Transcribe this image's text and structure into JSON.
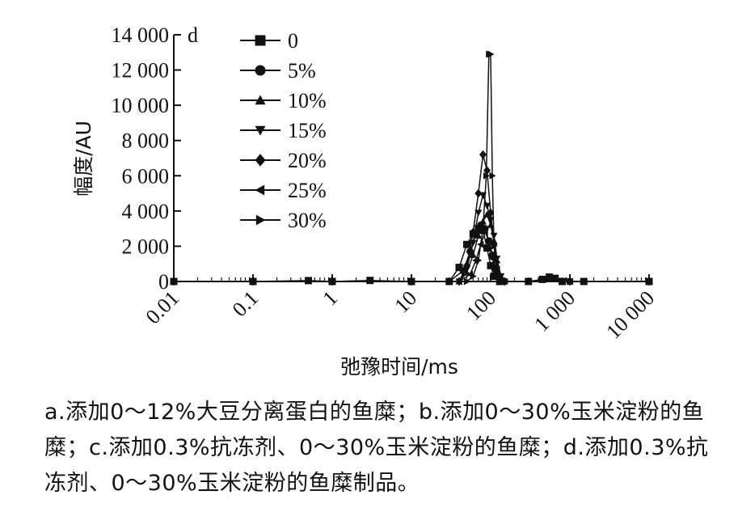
{
  "caption": "a.添加0～12%大豆分离蛋白的鱼糜；b.添加0～30%玉米淀粉的鱼糜；c.添加0.3%抗冻剂、0～30%玉米淀粉的鱼糜；d.添加0.3%抗冻剂、0～30%玉米淀粉的鱼糜制品。",
  "chart_data": {
    "type": "line",
    "panel_label": "d",
    "xlabel": "弛豫时间/ms",
    "ylabel": "幅度/AU",
    "x_scale": "log",
    "xlim": [
      0.01,
      10000
    ],
    "ylim": [
      0,
      14000
    ],
    "x_ticks": [
      0.01,
      0.1,
      1,
      10,
      100,
      1000,
      10000
    ],
    "x_tick_labels": [
      "0.01",
      "0.1",
      "1",
      "10",
      "100",
      "1 000",
      "10 000"
    ],
    "y_ticks": [
      0,
      2000,
      4000,
      6000,
      8000,
      10000,
      12000,
      14000
    ],
    "y_tick_labels": [
      "0",
      "2 000",
      "4 000",
      "6 000",
      "8 000",
      "10 000",
      "12 000",
      "14 000"
    ],
    "legend_position": "top-left",
    "series": [
      {
        "name": "0",
        "marker": "square",
        "x": [
          0.01,
          0.1,
          0.5,
          1,
          3,
          10,
          30,
          40,
          50,
          60,
          70,
          80,
          90,
          100,
          110,
          130,
          300,
          450,
          550,
          650,
          800,
          1500,
          10000
        ],
        "y": [
          0,
          0,
          50,
          0,
          60,
          0,
          0,
          800,
          2100,
          2700,
          3000,
          2900,
          1900,
          900,
          300,
          0,
          0,
          120,
          250,
          180,
          0,
          0,
          0
        ]
      },
      {
        "name": "5%",
        "marker": "circle",
        "x": [
          0.01,
          0.1,
          1,
          10,
          30,
          45,
          55,
          65,
          75,
          85,
          95,
          105,
          115,
          130,
          150,
          1000,
          10000
        ],
        "y": [
          0,
          0,
          0,
          0,
          0,
          600,
          1700,
          2700,
          3200,
          3000,
          2300,
          1500,
          700,
          150,
          0,
          0,
          0
        ]
      },
      {
        "name": "10%",
        "marker": "triangle-up",
        "x": [
          0.01,
          0.1,
          1,
          10,
          40,
          50,
          60,
          70,
          80,
          90,
          100,
          110,
          120,
          130,
          150,
          1000,
          10000
        ],
        "y": [
          0,
          0,
          0,
          0,
          0,
          500,
          1500,
          2600,
          3400,
          3800,
          3200,
          2300,
          1200,
          400,
          0,
          0,
          0
        ]
      },
      {
        "name": "15%",
        "marker": "triangle-down",
        "x": [
          0.01,
          0.1,
          1,
          10,
          40,
          50,
          60,
          70,
          80,
          90,
          100,
          110,
          120,
          135,
          150,
          1000,
          10000
        ],
        "y": [
          0,
          0,
          0,
          0,
          0,
          700,
          2200,
          3900,
          4900,
          4300,
          3500,
          2600,
          1300,
          300,
          0,
          0,
          0
        ]
      },
      {
        "name": "20%",
        "marker": "diamond",
        "x": [
          0.01,
          0.1,
          1,
          10,
          40,
          50,
          60,
          70,
          80,
          90,
          100,
          110,
          120,
          135,
          150,
          1000,
          10000
        ],
        "y": [
          0,
          0,
          0,
          0,
          0,
          900,
          2800,
          5000,
          7200,
          6300,
          3900,
          2100,
          800,
          150,
          0,
          0,
          0
        ]
      },
      {
        "name": "25%",
        "marker": "triangle-left",
        "x": [
          0.01,
          0.1,
          1,
          10,
          40,
          55,
          65,
          75,
          85,
          95,
          105,
          120,
          135,
          1000,
          10000
        ],
        "y": [
          0,
          0,
          0,
          0,
          0,
          400,
          1200,
          2100,
          2800,
          2300,
          1300,
          400,
          0,
          0,
          0
        ]
      },
      {
        "name": "30%",
        "marker": "triangle-right",
        "x": [
          0.01,
          0.1,
          1,
          10,
          50,
          60,
          70,
          80,
          88,
          95,
          100,
          105,
          110,
          120,
          140,
          1000,
          10000
        ],
        "y": [
          0,
          0,
          0,
          0,
          0,
          300,
          1200,
          3000,
          6000,
          12900,
          12900,
          6000,
          2000,
          300,
          0,
          0,
          0
        ]
      }
    ]
  }
}
